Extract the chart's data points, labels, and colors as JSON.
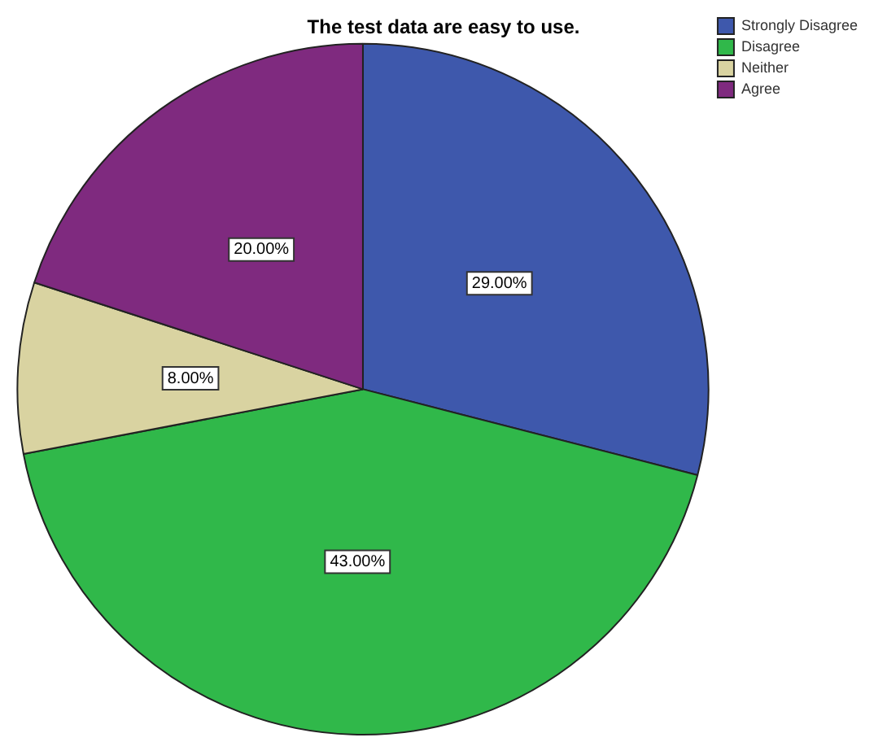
{
  "chart_data": {
    "type": "pie",
    "title": "The test data are easy to use.",
    "categories": [
      "Strongly Disagree",
      "Disagree",
      "Neither",
      "Agree"
    ],
    "values": [
      29,
      43,
      8,
      20
    ],
    "colors": [
      "#3e58ac",
      "#30b84a",
      "#d9d3a1",
      "#7f2a7f"
    ],
    "value_labels": [
      "29.00%",
      "43.00%",
      "8.00%",
      "20.00%"
    ],
    "legend": "top right"
  }
}
